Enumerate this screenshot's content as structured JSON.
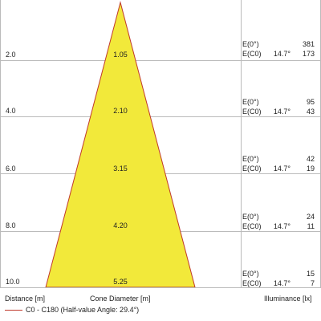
{
  "rows": [
    {
      "distance": "2.0",
      "diameter": "1.05",
      "e0_label": "E(0°)",
      "ec0_label": "E(C0)",
      "angle": "14.7°",
      "e0": "381",
      "ec0": "173"
    },
    {
      "distance": "4.0",
      "diameter": "2.10",
      "e0_label": "E(0°)",
      "ec0_label": "E(C0)",
      "angle": "14.7°",
      "e0": "95",
      "ec0": "43"
    },
    {
      "distance": "6.0",
      "diameter": "3.15",
      "e0_label": "E(0°)",
      "ec0_label": "E(C0)",
      "angle": "14.7°",
      "e0": "42",
      "ec0": "19"
    },
    {
      "distance": "8.0",
      "diameter": "4.20",
      "e0_label": "E(0°)",
      "ec0_label": "E(C0)",
      "angle": "14.7°",
      "e0": "24",
      "ec0": "11"
    },
    {
      "distance": "10.0",
      "diameter": "5.25",
      "e0_label": "E(0°)",
      "ec0_label": "E(C0)",
      "angle": "14.7°",
      "e0": "15",
      "ec0": "7"
    }
  ],
  "footer": {
    "distance_label": "Distance [m]",
    "diameter_label": "Cone Diameter [m]",
    "illuminance_label": "Illuminance [lx]"
  },
  "legend": {
    "label": "C0 - C180 (Half-value Angle: 29.4°)",
    "line_color": "#c0392b"
  },
  "colors": {
    "cone_fill": "#f2e93a",
    "cone_stroke": "#c0392b",
    "grid": "#bbbbbb"
  },
  "chart_data": {
    "type": "table",
    "half_value_angle_deg": 29.4,
    "distance_m": [
      2.0,
      4.0,
      6.0,
      8.0,
      10.0
    ],
    "cone_diameter_m": [
      1.05,
      2.1,
      3.15,
      4.2,
      5.25
    ],
    "e0_lx": [
      381,
      95,
      42,
      24,
      15
    ],
    "ec0_lx": [
      173,
      43,
      19,
      11,
      7
    ],
    "ec0_angle_deg": 14.7
  }
}
